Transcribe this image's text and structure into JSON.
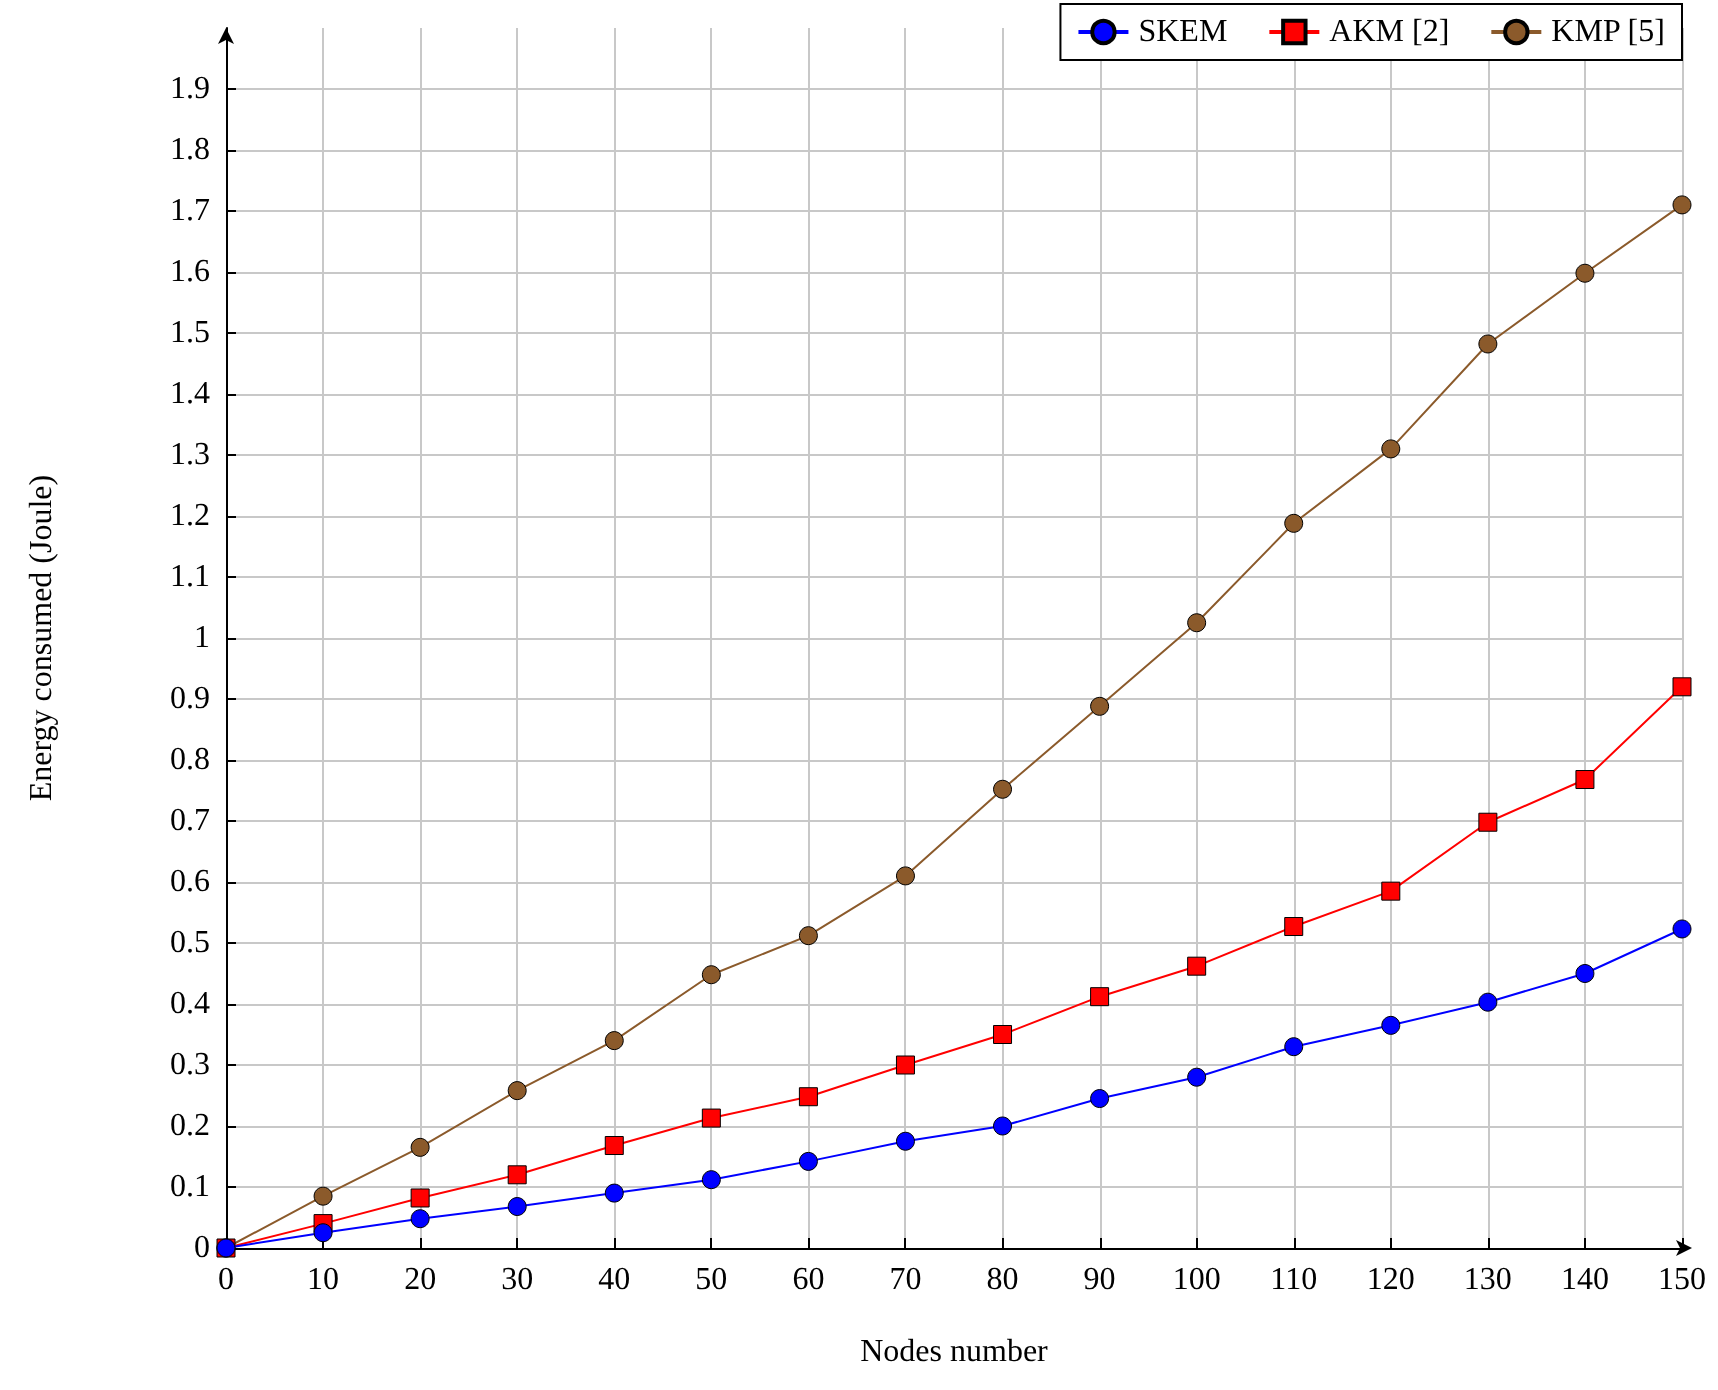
{
  "chart_data": {
    "type": "line",
    "xlabel": "Nodes number",
    "ylabel": "Energy consumed (Joule)",
    "x": [
      0,
      10,
      20,
      30,
      40,
      50,
      60,
      70,
      80,
      90,
      100,
      110,
      120,
      130,
      140,
      150
    ],
    "series": [
      {
        "name": "SKEM",
        "color": "#0000ff",
        "marker": "circle",
        "values": [
          0,
          0.025,
          0.048,
          0.068,
          0.09,
          0.112,
          0.142,
          0.175,
          0.2,
          0.245,
          0.28,
          0.33,
          0.365,
          0.403,
          0.45,
          0.523
        ]
      },
      {
        "name": "AKM [2]",
        "color": "#ff0000",
        "marker": "square",
        "values": [
          0,
          0.04,
          0.082,
          0.12,
          0.168,
          0.213,
          0.248,
          0.3,
          0.35,
          0.412,
          0.462,
          0.527,
          0.585,
          0.698,
          0.768,
          0.92
        ]
      },
      {
        "name": "KMP [5]",
        "color": "#8b5a2b",
        "marker": "circle",
        "values": [
          0,
          0.085,
          0.165,
          0.258,
          0.34,
          0.448,
          0.512,
          0.61,
          0.752,
          0.888,
          1.025,
          1.188,
          1.31,
          1.482,
          1.598,
          1.71
        ]
      }
    ],
    "xlim": [
      0,
      150
    ],
    "xticks": [
      0,
      10,
      20,
      30,
      40,
      50,
      60,
      70,
      80,
      90,
      100,
      110,
      120,
      130,
      140,
      150
    ],
    "ylim": [
      0,
      2
    ],
    "yticks": [
      0,
      0.1,
      0.2,
      0.3,
      0.4,
      0.5,
      0.6,
      0.7,
      0.8,
      0.9,
      1,
      1.1,
      1.2,
      1.3,
      1.4,
      1.5,
      1.6,
      1.7,
      1.8,
      1.9
    ],
    "grid": true,
    "legend": "top right",
    "line_style": "solid"
  }
}
